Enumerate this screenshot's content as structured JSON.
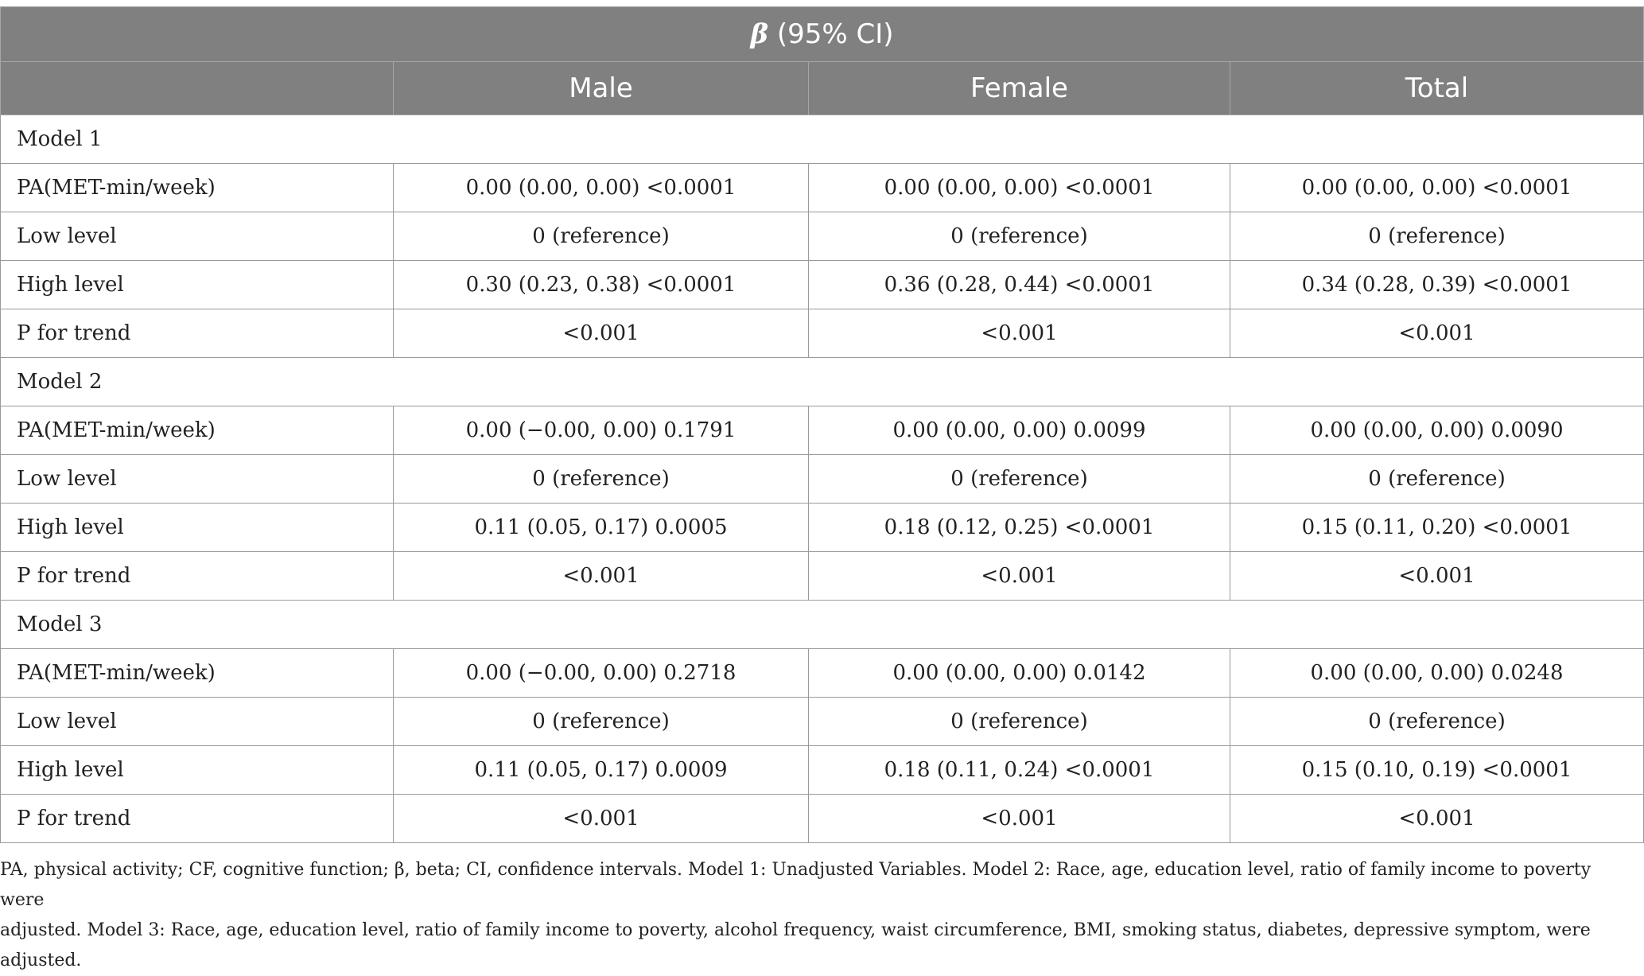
{
  "table": {
    "header_title_symbol": "β",
    "header_title_rest": " (95% CI)",
    "columns": [
      "",
      "Male",
      "Female",
      "Total"
    ],
    "groups": [
      {
        "model": "Model 1",
        "rows": [
          {
            "label": "PA(MET-min/week)",
            "male": "0.00 (0.00, 0.00) <0.0001",
            "female": "0.00 (0.00, 0.00) <0.0001",
            "total": "0.00 (0.00, 0.00) <0.0001"
          },
          {
            "label": "Low level",
            "male": "0 (reference)",
            "female": "0 (reference)",
            "total": "0 (reference)"
          },
          {
            "label": "High level",
            "male": "0.30 (0.23, 0.38) <0.0001",
            "female": "0.36 (0.28, 0.44) <0.0001",
            "total": "0.34 (0.28, 0.39) <0.0001"
          },
          {
            "label": "P for trend",
            "male": "<0.001",
            "female": "<0.001",
            "total": "<0.001"
          }
        ]
      },
      {
        "model": "Model 2",
        "rows": [
          {
            "label": "PA(MET-min/week)",
            "male": "0.00 (−0.00, 0.00) 0.1791",
            "female": "0.00 (0.00, 0.00) 0.0099",
            "total": "0.00 (0.00, 0.00) 0.0090"
          },
          {
            "label": "Low level",
            "male": "0 (reference)",
            "female": "0 (reference)",
            "total": "0 (reference)"
          },
          {
            "label": "High level",
            "male": "0.11 (0.05, 0.17) 0.0005",
            "female": "0.18 (0.12, 0.25) <0.0001",
            "total": "0.15 (0.11, 0.20) <0.0001"
          },
          {
            "label": "P for trend",
            "male": "<0.001",
            "female": "<0.001",
            "total": "<0.001"
          }
        ]
      },
      {
        "model": "Model 3",
        "rows": [
          {
            "label": "PA(MET-min/week)",
            "male": "0.00 (−0.00, 0.00) 0.2718",
            "female": "0.00 (0.00, 0.00) 0.0142",
            "total": "0.00 (0.00, 0.00) 0.0248"
          },
          {
            "label": "Low level",
            "male": "0 (reference)",
            "female": "0 (reference)",
            "total": "0 (reference)"
          },
          {
            "label": "High level",
            "male": "0.11 (0.05, 0.17) 0.0009",
            "female": "0.18 (0.11, 0.24) <0.0001",
            "total": "0.15 (0.10, 0.19) <0.0001"
          },
          {
            "label": "P for trend",
            "male": "<0.001",
            "female": "<0.001",
            "total": "<0.001"
          }
        ]
      }
    ]
  },
  "footnote": {
    "line1": "PA, physical activity; CF, cognitive function; β, beta; CI, confidence intervals. Model 1: Unadjusted Variables. Model 2: Race, age, education level, ratio of family income to poverty were",
    "line2": "adjusted. Model 3: Race, age, education level, ratio of family income to poverty, alcohol frequency, waist circumference, BMI, smoking status, diabetes, depressive symptom, were adjusted."
  },
  "colors": {
    "header_bg": "#808080",
    "header_text": "#ffffff",
    "border": "#9a9a9a",
    "body_text": "#222222"
  }
}
